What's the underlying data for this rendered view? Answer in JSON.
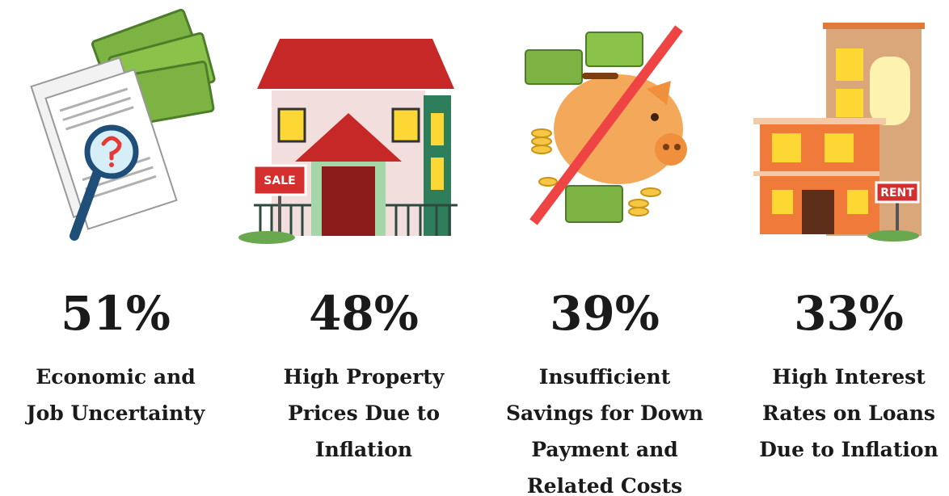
{
  "items": [
    {
      "value": "51%",
      "label_lines": [
        "Economic and",
        "Job Uncertainty"
      ]
    },
    {
      "value": "48%",
      "label_lines": [
        "High Property",
        "Prices Due to",
        "Inflation"
      ],
      "sign": "SALE"
    },
    {
      "value": "39%",
      "label_lines": [
        "Insufficient",
        "Savings for Down",
        "Payment and",
        "Related Costs"
      ]
    },
    {
      "value": "33%",
      "label_lines": [
        "High Interest",
        "Rates on Loans",
        "Due to Inflation"
      ],
      "sign": "RENT"
    }
  ]
}
